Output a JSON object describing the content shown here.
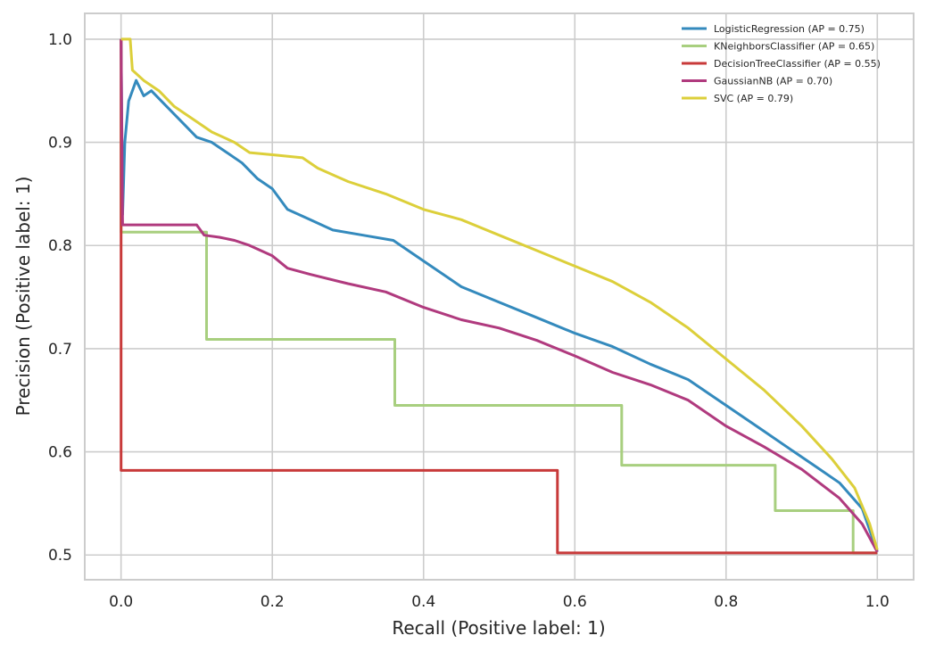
{
  "chart_data": {
    "type": "line",
    "title": "",
    "xlabel": "Recall (Positive label: 1)",
    "ylabel": "Precision (Positive label: 1)",
    "xlim": [
      -0.048,
      1.048
    ],
    "ylim": [
      0.476,
      1.025
    ],
    "xticks": [
      0.0,
      0.2,
      0.4,
      0.6,
      0.8,
      1.0
    ],
    "xtick_labels": [
      "0.0",
      "0.2",
      "0.4",
      "0.6",
      "0.8",
      "1.0"
    ],
    "yticks": [
      0.5,
      0.6,
      0.7,
      0.8,
      0.9,
      1.0
    ],
    "ytick_labels": [
      "0.5",
      "0.6",
      "0.7",
      "0.8",
      "0.9",
      "1.0"
    ],
    "grid": true,
    "legend_position": "top-right",
    "series": [
      {
        "name": "LogisticRegression (AP = 0.75)",
        "color": "#348abd",
        "step": false,
        "points": [
          [
            0.0,
            1.0
          ],
          [
            0.002,
            0.83
          ],
          [
            0.005,
            0.9
          ],
          [
            0.01,
            0.94
          ],
          [
            0.02,
            0.96
          ],
          [
            0.03,
            0.945
          ],
          [
            0.04,
            0.95
          ],
          [
            0.06,
            0.935
          ],
          [
            0.08,
            0.92
          ],
          [
            0.1,
            0.905
          ],
          [
            0.12,
            0.9
          ],
          [
            0.14,
            0.89
          ],
          [
            0.16,
            0.88
          ],
          [
            0.18,
            0.865
          ],
          [
            0.2,
            0.855
          ],
          [
            0.22,
            0.835
          ],
          [
            0.25,
            0.825
          ],
          [
            0.28,
            0.815
          ],
          [
            0.32,
            0.81
          ],
          [
            0.36,
            0.805
          ],
          [
            0.4,
            0.785
          ],
          [
            0.45,
            0.76
          ],
          [
            0.5,
            0.745
          ],
          [
            0.55,
            0.73
          ],
          [
            0.6,
            0.715
          ],
          [
            0.65,
            0.702
          ],
          [
            0.7,
            0.685
          ],
          [
            0.75,
            0.67
          ],
          [
            0.8,
            0.645
          ],
          [
            0.85,
            0.62
          ],
          [
            0.88,
            0.605
          ],
          [
            0.92,
            0.585
          ],
          [
            0.95,
            0.57
          ],
          [
            0.98,
            0.545
          ],
          [
            1.0,
            0.503
          ]
        ]
      },
      {
        "name": "KNeighborsClassifier (AP = 0.65)",
        "color": "#a8cf7f",
        "step": true,
        "points": [
          [
            0.0,
            1.0
          ],
          [
            0.0,
            0.813
          ],
          [
            0.113,
            0.813
          ],
          [
            0.113,
            0.709
          ],
          [
            0.362,
            0.709
          ],
          [
            0.362,
            0.645
          ],
          [
            0.662,
            0.645
          ],
          [
            0.662,
            0.587
          ],
          [
            0.865,
            0.587
          ],
          [
            0.865,
            0.543
          ],
          [
            0.968,
            0.543
          ],
          [
            0.968,
            0.502
          ],
          [
            1.0,
            0.502
          ]
        ]
      },
      {
        "name": "DecisionTreeClassifier (AP = 0.55)",
        "color": "#c83a3a",
        "step": true,
        "points": [
          [
            0.0,
            1.0
          ],
          [
            0.0,
            0.582
          ],
          [
            0.577,
            0.582
          ],
          [
            0.577,
            0.502
          ],
          [
            1.0,
            0.502
          ]
        ]
      },
      {
        "name": "GaussianNB (AP = 0.70)",
        "color": "#b03a7e",
        "step": false,
        "points": [
          [
            0.0,
            1.0
          ],
          [
            0.002,
            0.82
          ],
          [
            0.05,
            0.82
          ],
          [
            0.1,
            0.82
          ],
          [
            0.11,
            0.81
          ],
          [
            0.13,
            0.808
          ],
          [
            0.15,
            0.805
          ],
          [
            0.17,
            0.8
          ],
          [
            0.2,
            0.79
          ],
          [
            0.22,
            0.778
          ],
          [
            0.25,
            0.772
          ],
          [
            0.3,
            0.763
          ],
          [
            0.35,
            0.755
          ],
          [
            0.4,
            0.74
          ],
          [
            0.45,
            0.728
          ],
          [
            0.5,
            0.72
          ],
          [
            0.55,
            0.708
          ],
          [
            0.6,
            0.693
          ],
          [
            0.65,
            0.677
          ],
          [
            0.7,
            0.665
          ],
          [
            0.75,
            0.65
          ],
          [
            0.8,
            0.625
          ],
          [
            0.85,
            0.605
          ],
          [
            0.9,
            0.583
          ],
          [
            0.95,
            0.555
          ],
          [
            0.98,
            0.53
          ],
          [
            1.0,
            0.503
          ]
        ]
      },
      {
        "name": "SVC (AP = 0.79)",
        "color": "#dccf3a",
        "step": false,
        "points": [
          [
            0.0,
            1.0
          ],
          [
            0.012,
            1.0
          ],
          [
            0.015,
            0.97
          ],
          [
            0.03,
            0.96
          ],
          [
            0.05,
            0.95
          ],
          [
            0.07,
            0.935
          ],
          [
            0.1,
            0.92
          ],
          [
            0.12,
            0.91
          ],
          [
            0.15,
            0.9
          ],
          [
            0.17,
            0.89
          ],
          [
            0.2,
            0.888
          ],
          [
            0.24,
            0.885
          ],
          [
            0.26,
            0.875
          ],
          [
            0.3,
            0.862
          ],
          [
            0.35,
            0.85
          ],
          [
            0.4,
            0.835
          ],
          [
            0.45,
            0.825
          ],
          [
            0.5,
            0.81
          ],
          [
            0.55,
            0.795
          ],
          [
            0.6,
            0.78
          ],
          [
            0.65,
            0.765
          ],
          [
            0.7,
            0.745
          ],
          [
            0.75,
            0.72
          ],
          [
            0.8,
            0.69
          ],
          [
            0.85,
            0.66
          ],
          [
            0.9,
            0.625
          ],
          [
            0.94,
            0.593
          ],
          [
            0.97,
            0.565
          ],
          [
            0.99,
            0.53
          ],
          [
            1.0,
            0.505
          ]
        ]
      }
    ]
  }
}
